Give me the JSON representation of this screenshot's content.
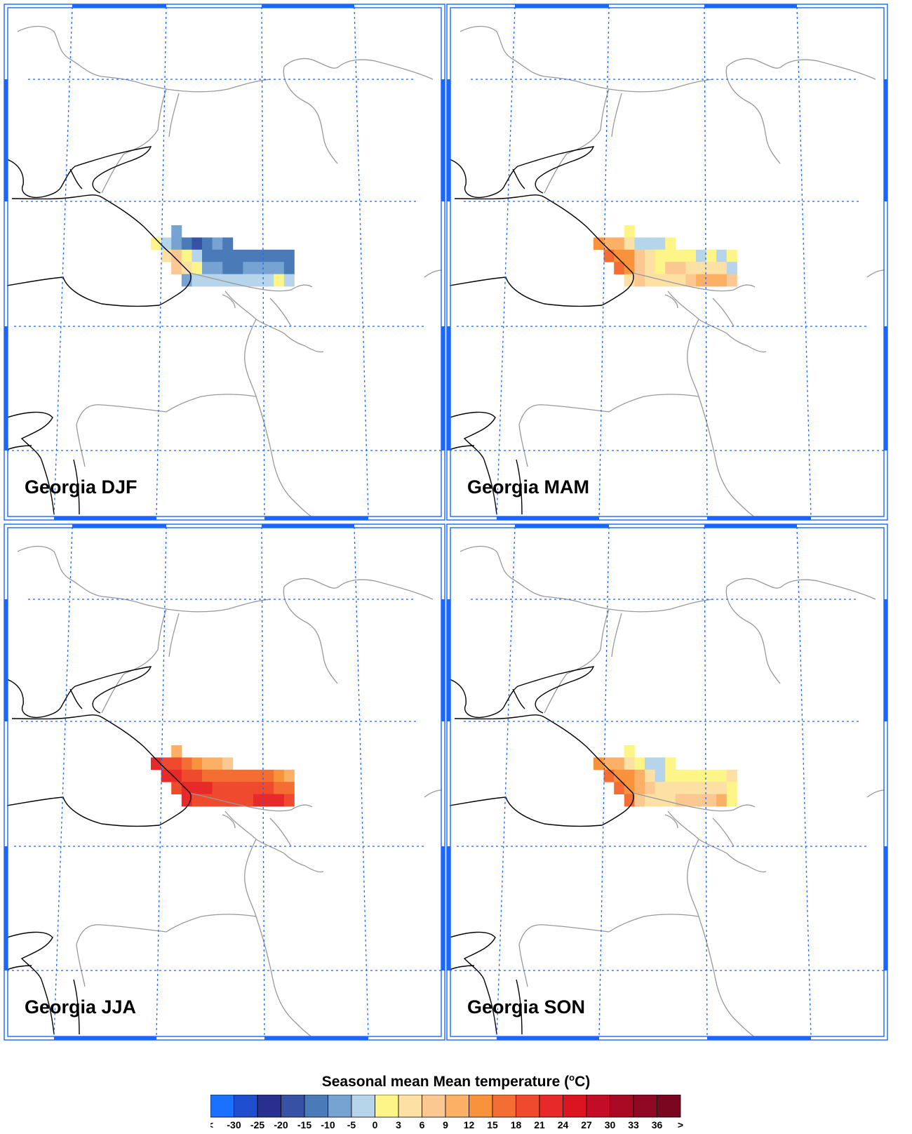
{
  "panels": [
    {
      "id": "djf",
      "title": "Georgia DJF"
    },
    {
      "id": "mam",
      "title": "Georgia MAM"
    },
    {
      "id": "jja",
      "title": "Georgia JJA"
    },
    {
      "id": "son",
      "title": "Georgia SON"
    }
  ],
  "colorbar": {
    "title_prefix": "Seasonal mean Mean temperature (",
    "title_degree": "o",
    "title_suffix": "C)",
    "labels": [
      "<",
      "-30",
      "-25",
      "-20",
      "-15",
      "-10",
      "-5",
      "0",
      "3",
      "6",
      "9",
      "12",
      "15",
      "18",
      "21",
      "24",
      "27",
      "30",
      "33",
      "36",
      ">"
    ],
    "colors": [
      "#1a70ff",
      "#1f4fcf",
      "#2a2e8f",
      "#3752a4",
      "#4a7ab8",
      "#77a3d2",
      "#b6d5ea",
      "#fdf587",
      "#fde0a3",
      "#fcc892",
      "#fbb066",
      "#f9933b",
      "#f46d32",
      "#ef4a2d",
      "#e8292a",
      "#db1420",
      "#c30c25",
      "#a80a24",
      "#900823",
      "#7a0620"
    ]
  },
  "colors": {
    "gridline": "#1a66ff",
    "frame": "#1a66ff",
    "coast": "#000000",
    "border": "#999999"
  }
}
